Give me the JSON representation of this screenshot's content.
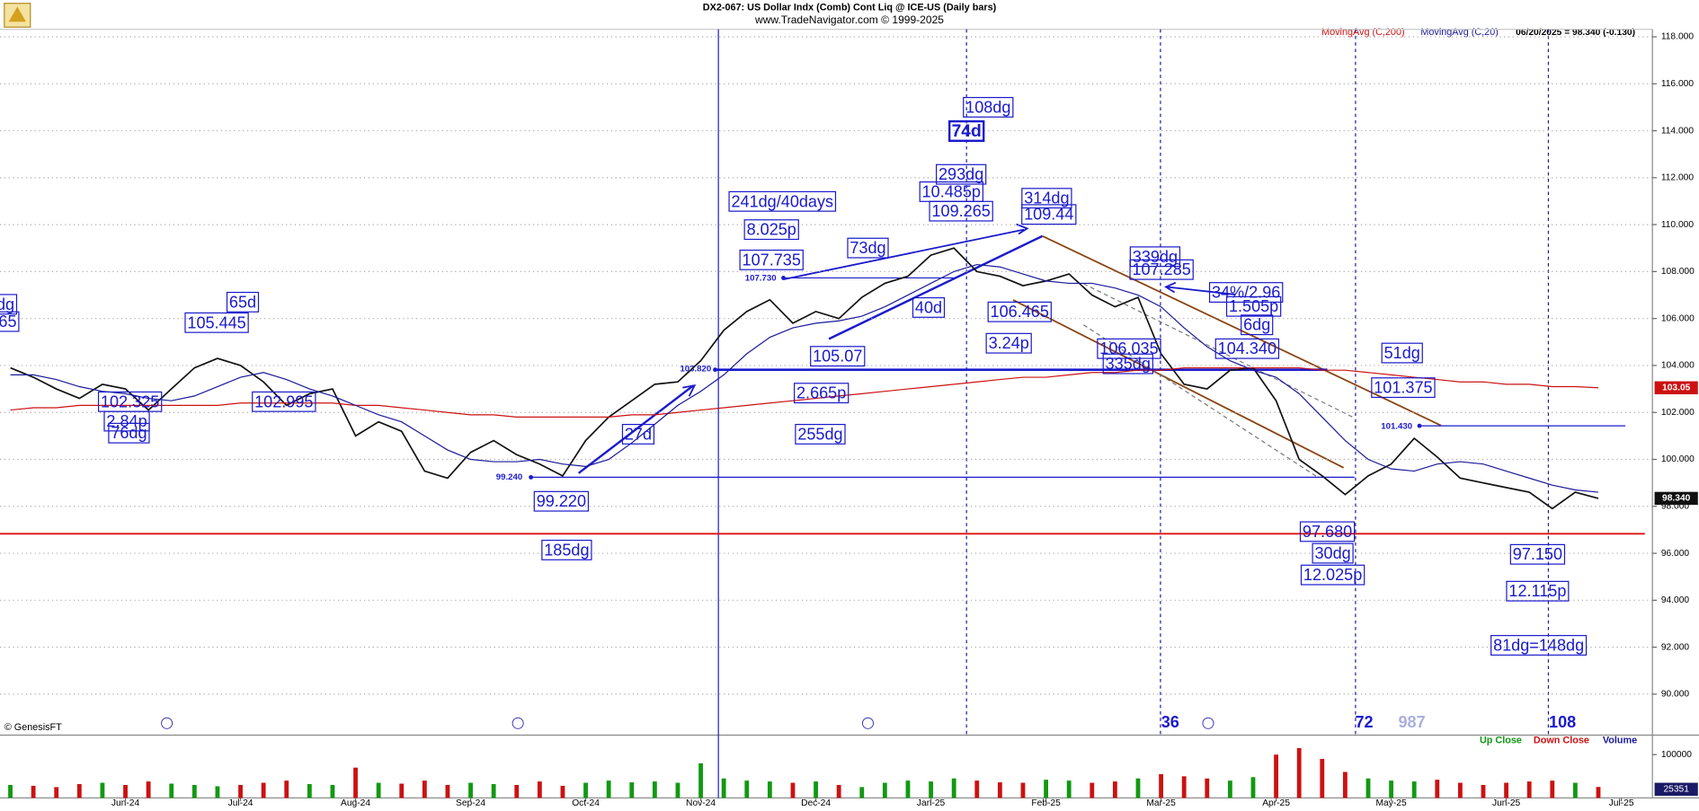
{
  "chart_data": [
    {
      "type": "line",
      "title": "DX2-067:  US Dollar Indx (Comb) Cont Liq @ ICE-US  (Daily bars)",
      "subtitle": "www.TradeNavigator.com © 1999-2025",
      "status": "06/20/2025 = 98.340 (-0.130)",
      "source": "© GenesisFT",
      "price_label": "98.340",
      "ma_label": "103.05",
      "xlim": [
        -1.09,
        13.27
      ],
      "xticks": [
        {
          "value": 0,
          "label": "Jun-24"
        },
        {
          "value": 1,
          "label": "Jul-24"
        },
        {
          "value": 2,
          "label": "Aug-24"
        },
        {
          "value": 3,
          "label": "Sep-24"
        },
        {
          "value": 4,
          "label": "Oct-24"
        },
        {
          "value": 5,
          "label": "Nov-24"
        },
        {
          "value": 6,
          "label": "Dec-24"
        },
        {
          "value": 7,
          "label": "Jan-25"
        },
        {
          "value": 8,
          "label": "Feb-25"
        },
        {
          "value": 9,
          "label": "Mar-25"
        },
        {
          "value": 10,
          "label": "Apr-25"
        },
        {
          "value": 11,
          "label": "May-25"
        },
        {
          "value": 12,
          "label": "Jun-25"
        },
        {
          "value": 13,
          "label": "Jul-25"
        }
      ],
      "ylim": [
        88.3,
        118.32
      ],
      "yticks": [
        {
          "value": 90,
          "label": "90.000"
        },
        {
          "value": 92,
          "label": "92.000"
        },
        {
          "value": 94,
          "label": "94.000"
        },
        {
          "value": 96,
          "label": "96.000"
        },
        {
          "value": 98,
          "label": "98.000"
        },
        {
          "value": 100,
          "label": "100.000"
        },
        {
          "value": 102,
          "label": "102.000"
        },
        {
          "value": 104,
          "label": "104.000"
        },
        {
          "value": 106,
          "label": "106.000"
        },
        {
          "value": 108,
          "label": "108.000"
        },
        {
          "value": 110,
          "label": "110.000"
        },
        {
          "value": 112,
          "label": "112.000"
        },
        {
          "value": 114,
          "label": "114.000"
        },
        {
          "value": 116,
          "label": "116.000"
        },
        {
          "value": 118,
          "label": "118.000"
        }
      ],
      "grid": true,
      "x": [
        -1.0,
        -0.8,
        -0.6,
        -0.4,
        -0.2,
        0.0,
        0.2,
        0.4,
        0.6,
        0.8,
        1.0,
        1.2,
        1.4,
        1.6,
        1.8,
        2.0,
        2.2,
        2.4,
        2.6,
        2.8,
        3.0,
        3.2,
        3.4,
        3.6,
        3.8,
        4.0,
        4.2,
        4.4,
        4.6,
        4.8,
        5.0,
        5.2,
        5.4,
        5.6,
        5.8,
        6.0,
        6.2,
        6.4,
        6.6,
        6.8,
        7.0,
        7.2,
        7.4,
        7.6,
        7.8,
        8.0,
        8.2,
        8.4,
        8.6,
        8.8,
        9.0,
        9.2,
        9.4,
        9.6,
        9.8,
        10.0,
        10.2,
        10.4,
        10.6,
        10.8,
        11.0,
        11.2,
        11.4,
        11.6,
        11.8,
        12.0,
        12.2,
        12.4,
        12.6,
        12.8
      ],
      "series": [
        {
          "color": "#111111",
          "values": [
            103.9,
            103.5,
            103.0,
            102.6,
            103.2,
            103.0,
            102.1,
            103.0,
            103.9,
            104.3,
            104.0,
            103.3,
            102.3,
            102.8,
            103.0,
            101.0,
            101.6,
            101.2,
            99.5,
            99.2,
            100.3,
            100.8,
            100.2,
            99.8,
            99.3,
            100.8,
            101.8,
            102.5,
            103.2,
            103.3,
            104.2,
            105.5,
            106.3,
            106.8,
            105.8,
            106.3,
            106.0,
            106.9,
            107.5,
            107.8,
            108.7,
            109.0,
            108.0,
            107.8,
            107.4,
            107.6,
            107.9,
            107.0,
            106.5,
            106.9,
            104.5,
            103.2,
            103.0,
            103.8,
            103.9,
            102.5,
            100.0,
            99.3,
            98.5,
            99.3,
            99.8,
            100.9,
            100.1,
            99.2,
            99.0,
            98.8,
            98.6,
            97.9,
            98.6,
            98.34
          ]
        },
        {
          "name": "MovingAvg (C,200)",
          "color": "#cc1111",
          "values": [
            102.1,
            102.2,
            102.2,
            102.3,
            102.3,
            102.3,
            102.3,
            102.3,
            102.3,
            102.3,
            102.4,
            102.4,
            102.4,
            102.4,
            102.4,
            102.3,
            102.3,
            102.2,
            102.1,
            102.0,
            101.9,
            101.9,
            101.8,
            101.8,
            101.8,
            101.8,
            101.8,
            101.9,
            101.9,
            102.0,
            102.1,
            102.2,
            102.3,
            102.4,
            102.5,
            102.6,
            102.7,
            102.8,
            102.9,
            103.0,
            103.1,
            103.2,
            103.3,
            103.4,
            103.5,
            103.5,
            103.6,
            103.7,
            103.7,
            103.8,
            103.8,
            103.9,
            103.9,
            103.9,
            103.9,
            103.9,
            103.9,
            103.8,
            103.8,
            103.7,
            103.6,
            103.5,
            103.4,
            103.3,
            103.3,
            103.2,
            103.2,
            103.1,
            103.1,
            103.05
          ]
        },
        {
          "name": "MovingAvg (C,20)",
          "color": "#1a1a99",
          "values": [
            103.6,
            103.6,
            103.4,
            103.1,
            102.9,
            102.8,
            102.6,
            102.5,
            102.7,
            103.1,
            103.5,
            103.7,
            103.4,
            103.0,
            102.7,
            102.3,
            101.9,
            101.6,
            101.0,
            100.4,
            100.0,
            99.9,
            99.9,
            100.0,
            99.8,
            99.7,
            100.0,
            100.7,
            101.5,
            102.3,
            102.9,
            103.6,
            104.5,
            105.2,
            105.6,
            105.8,
            105.9,
            106.1,
            106.5,
            107.0,
            107.5,
            108.0,
            108.3,
            108.2,
            107.9,
            107.6,
            107.5,
            107.5,
            107.3,
            107.0,
            106.5,
            105.6,
            104.8,
            104.2,
            103.8,
            103.5,
            102.8,
            101.8,
            100.8,
            100.0,
            99.6,
            99.5,
            99.8,
            99.9,
            99.8,
            99.5,
            99.2,
            98.9,
            98.7,
            98.6
          ]
        }
      ],
      "levels": [
        {
          "value": 107.73,
          "label": "107.730"
        },
        {
          "value": 103.82,
          "label": "103.820"
        },
        {
          "value": 99.24,
          "label": "99.240"
        },
        {
          "value": 101.43,
          "label": "101.430"
        }
      ],
      "annotations": [
        {
          "label": "108dg"
        },
        {
          "label": "74d"
        },
        {
          "label": "293dg"
        },
        {
          "label": "10.485p"
        },
        {
          "label": "109.265"
        },
        {
          "label": "241dg/40days"
        },
        {
          "label": "8.025p"
        },
        {
          "label": "314dg"
        },
        {
          "label": "109.44"
        },
        {
          "label": "73dg"
        },
        {
          "label": "107.735"
        },
        {
          "label": "339dg"
        },
        {
          "label": "107.285"
        },
        {
          "label": "34%/2.96"
        },
        {
          "label": "1.505p"
        },
        {
          "label": "6dg"
        },
        {
          "label": "40d"
        },
        {
          "label": "106.465"
        },
        {
          "label": "3.24p"
        },
        {
          "label": "106.035"
        },
        {
          "label": "335dg"
        },
        {
          "label": "104.340"
        },
        {
          "label": "105.07"
        },
        {
          "label": "2.665p"
        },
        {
          "label": "255dg"
        },
        {
          "label": "27d"
        },
        {
          "label": "51dg"
        },
        {
          "label": "101.375"
        },
        {
          "label": "65d"
        },
        {
          "label": "105.445"
        },
        {
          "label": "99.220"
        },
        {
          "label": "185dg"
        },
        {
          "label": "97.680"
        },
        {
          "label": "30dg"
        },
        {
          "label": "12.025p"
        },
        {
          "label": "97.150"
        },
        {
          "label": "12.115p"
        },
        {
          "label": "81dg=148dg"
        },
        {
          "label": "102.325"
        },
        {
          "label": "2.84p"
        },
        {
          "label": "76dg"
        },
        {
          "label": "102.995"
        },
        {
          "label": "dg"
        },
        {
          "label": "65"
        }
      ],
      "cycle_labels": [
        "36",
        "72",
        "987",
        "108"
      ]
    },
    {
      "type": "bar",
      "legend": [
        "Up Close",
        "Down Close"
      ],
      "series": [
        {
          "name": "Volume",
          "values": [
            30000,
            28000,
            25000,
            32000,
            35000,
            30000,
            38000,
            33000,
            30000,
            27000,
            30000,
            35000,
            40000,
            32000,
            30000,
            70000,
            35000,
            33000,
            40000,
            30000,
            35000,
            32000,
            30000,
            38000,
            28000,
            35000,
            40000,
            36000,
            38000,
            35000,
            80000,
            45000,
            40000,
            38000,
            35000,
            38000,
            30000,
            25000,
            35000,
            40000,
            38000,
            45000,
            40000,
            36000,
            35000,
            42000,
            40000,
            35000,
            38000,
            45000,
            55000,
            50000,
            45000,
            40000,
            48000,
            100000,
            115000,
            90000,
            60000,
            45000,
            40000,
            38000,
            42000,
            35000,
            30000,
            35000,
            38000,
            40000,
            35000,
            25351
          ]
        }
      ],
      "up_color": "#119911",
      "down_color": "#cc1111",
      "ylim": [
        0,
        142500
      ],
      "yticks": [
        100000
      ]
    }
  ]
}
